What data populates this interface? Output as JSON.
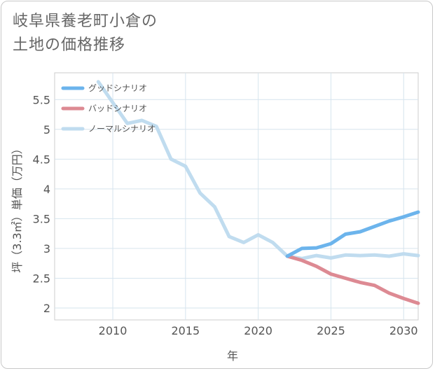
{
  "title_line1": "岐阜県養老町小倉の",
  "title_line2": "土地の価格推移",
  "chart_data": {
    "type": "line",
    "xlabel": "年",
    "ylabel": "坪（3.3㎡）単価（万円）",
    "xlim": [
      2006,
      2031
    ],
    "ylim": [
      1.8,
      5.95
    ],
    "x_ticks": [
      2010,
      2015,
      2020,
      2025,
      2030
    ],
    "y_ticks": [
      2,
      2.5,
      3,
      3.5,
      4,
      4.5,
      5,
      5.5
    ],
    "y_tick_labels": [
      "2",
      "2.5",
      "3",
      "3.5",
      "4",
      "4.5",
      "5",
      "5.5"
    ],
    "grid": true,
    "legend_position": "top-left",
    "series": [
      {
        "name": "グッドシナリオ",
        "color": "#6cb4ec",
        "x": [
          2022,
          2023,
          2024,
          2025,
          2026,
          2027,
          2028,
          2029,
          2030,
          2031
        ],
        "values": [
          2.87,
          3.0,
          3.01,
          3.08,
          3.24,
          3.28,
          3.37,
          3.46,
          3.53,
          3.61
        ]
      },
      {
        "name": "バッドシナリオ",
        "color": "#dd8a93",
        "x": [
          2022,
          2023,
          2024,
          2025,
          2026,
          2027,
          2028,
          2029,
          2030,
          2031
        ],
        "values": [
          2.87,
          2.8,
          2.7,
          2.57,
          2.5,
          2.43,
          2.38,
          2.25,
          2.16,
          2.08
        ]
      },
      {
        "name": "ノーマルシナリオ",
        "color": "#c0dcef",
        "x": [
          2009,
          2010,
          2011,
          2012,
          2013,
          2014,
          2015,
          2016,
          2017,
          2018,
          2019,
          2020,
          2021,
          2022,
          2023,
          2024,
          2025,
          2026,
          2027,
          2028,
          2029,
          2030,
          2031
        ],
        "values": [
          5.8,
          5.45,
          5.1,
          5.15,
          5.05,
          4.5,
          4.38,
          3.93,
          3.7,
          3.2,
          3.1,
          3.23,
          3.1,
          2.87,
          2.83,
          2.88,
          2.84,
          2.89,
          2.88,
          2.89,
          2.87,
          2.91,
          2.88
        ]
      }
    ]
  }
}
